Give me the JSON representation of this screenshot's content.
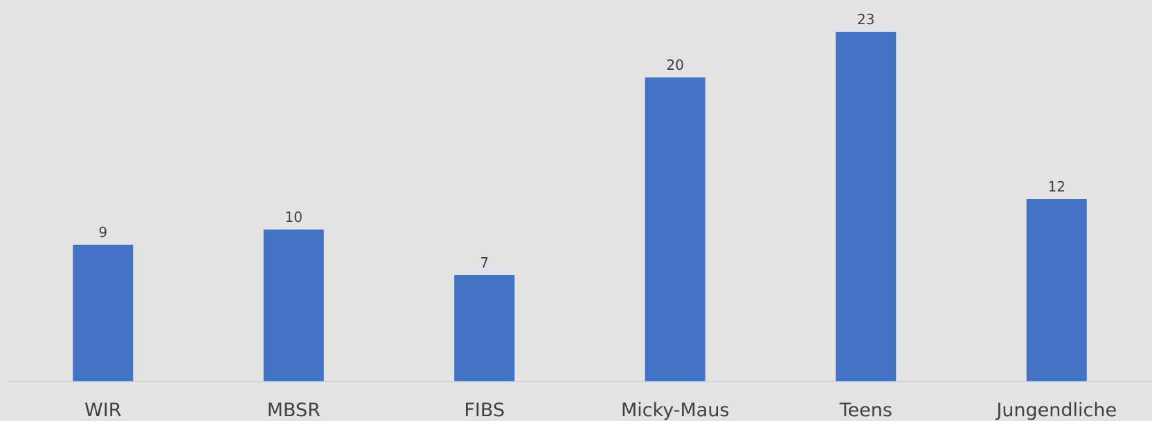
{
  "chart_data": {
    "type": "bar",
    "categories": [
      "WIR",
      "MBSR",
      "FIBS",
      "Micky-Maus",
      "Teens",
      "Jungendliche"
    ],
    "values": [
      9,
      10,
      7,
      20,
      23,
      12
    ],
    "color": "#4472c4",
    "ylim": [
      0,
      25
    ],
    "data_labels": true
  }
}
